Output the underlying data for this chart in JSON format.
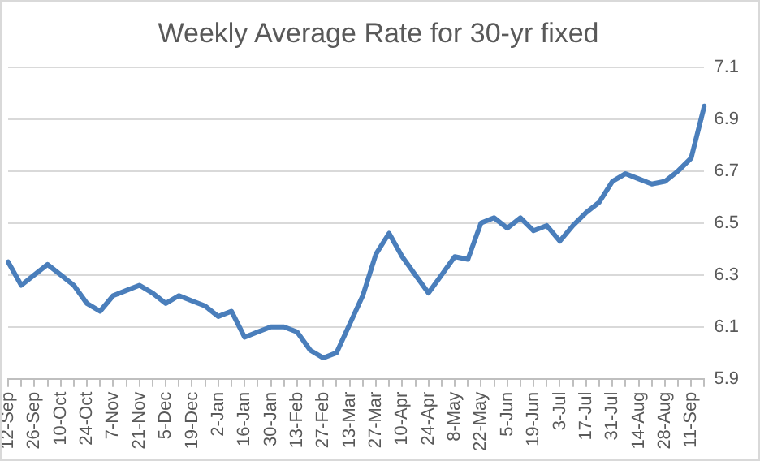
{
  "chart_data": {
    "type": "line",
    "title": "Weekly Average Rate for 30-yr fixed",
    "categories": [
      "12-Sep",
      null,
      "26-Sep",
      null,
      "10-Oct",
      null,
      "24-Oct",
      null,
      "7-Nov",
      null,
      "21-Nov",
      null,
      "5-Dec",
      null,
      "19-Dec",
      null,
      "2-Jan",
      null,
      "16-Jan",
      null,
      "30-Jan",
      null,
      "13-Feb",
      null,
      "27-Feb",
      null,
      "13-Mar",
      null,
      "27-Mar",
      null,
      "10-Apr",
      null,
      "24-Apr",
      null,
      "8-May",
      null,
      "22-May",
      null,
      "5-Jun",
      null,
      "19-Jun",
      null,
      "3-Jul",
      null,
      "17-Jul",
      null,
      "31-Jul",
      null,
      "14-Aug",
      null,
      "28-Aug",
      null,
      "11-Sep",
      null
    ],
    "series": [
      {
        "color": "#4a7ebb",
        "values": [
          6.35,
          6.26,
          6.3,
          6.34,
          6.3,
          6.26,
          6.19,
          6.16,
          6.22,
          6.24,
          6.26,
          6.23,
          6.19,
          6.22,
          6.2,
          6.18,
          6.14,
          6.16,
          6.06,
          6.08,
          6.1,
          6.1,
          6.08,
          6.01,
          5.98,
          6.0,
          6.11,
          6.22,
          6.38,
          6.46,
          6.37,
          6.3,
          6.23,
          6.3,
          6.37,
          6.36,
          6.5,
          6.52,
          6.48,
          6.52,
          6.47,
          6.49,
          6.43,
          6.49,
          6.54,
          6.58,
          6.66,
          6.69,
          6.67,
          6.65,
          6.66,
          6.7,
          6.75,
          6.95
        ]
      }
    ],
    "ylim": [
      5.9,
      7.1
    ],
    "yticks": [
      5.9,
      6.1,
      6.3,
      6.5,
      6.7,
      6.9,
      7.1
    ],
    "grid": "y",
    "legend": false,
    "marker": "none",
    "line_style": "solid"
  }
}
